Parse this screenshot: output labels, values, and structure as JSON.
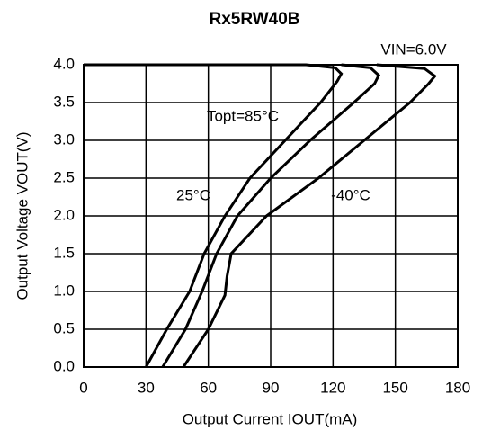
{
  "chart_data": {
    "type": "line",
    "title": "Rx5RW40B",
    "annotation": "VIN=6.0V",
    "x_label": "Output Current IOUT(mA)",
    "y_label": "Output Voltage VOUT(V)",
    "xlim": [
      0,
      180
    ],
    "xticks": [
      0,
      30,
      60,
      90,
      120,
      150,
      180
    ],
    "ylim": [
      0,
      4
    ],
    "yticks": [
      {
        "value": 0,
        "label": "0.0"
      },
      0.5,
      {
        "value": 1,
        "label": "1.0"
      },
      1.5,
      {
        "value": 2,
        "label": "2.0"
      },
      2.5,
      {
        "value": 3,
        "label": "3.0"
      },
      3.5,
      {
        "value": 4,
        "label": "4.0"
      }
    ],
    "grid": true,
    "series": [
      {
        "name": "Topt=85°C",
        "color": "#000000",
        "x": [
          30,
          40,
          51,
          58,
          68,
          80,
          97,
          114,
          122,
          124,
          121,
          107,
          0
        ],
        "y": [
          0,
          0.5,
          1.0,
          1.5,
          2.0,
          2.5,
          3.0,
          3.5,
          3.78,
          3.88,
          3.96,
          4.0,
          4.0
        ]
      },
      {
        "name": "25°C",
        "color": "#000000",
        "x": [
          38,
          49,
          57,
          64,
          74,
          90,
          109,
          130,
          140,
          142,
          138,
          124
        ],
        "y": [
          0,
          0.5,
          1.0,
          1.5,
          2.0,
          2.5,
          3.0,
          3.5,
          3.75,
          3.86,
          3.96,
          4.0
        ]
      },
      {
        "name": "-40°C",
        "color": "#000000",
        "x": [
          48,
          60,
          68,
          69,
          71,
          88,
          113,
          135,
          157,
          166,
          169,
          164,
          141
        ],
        "y": [
          0,
          0.5,
          0.95,
          1.2,
          1.5,
          2.0,
          2.5,
          3.0,
          3.5,
          3.75,
          3.85,
          3.95,
          4.0
        ]
      }
    ]
  }
}
